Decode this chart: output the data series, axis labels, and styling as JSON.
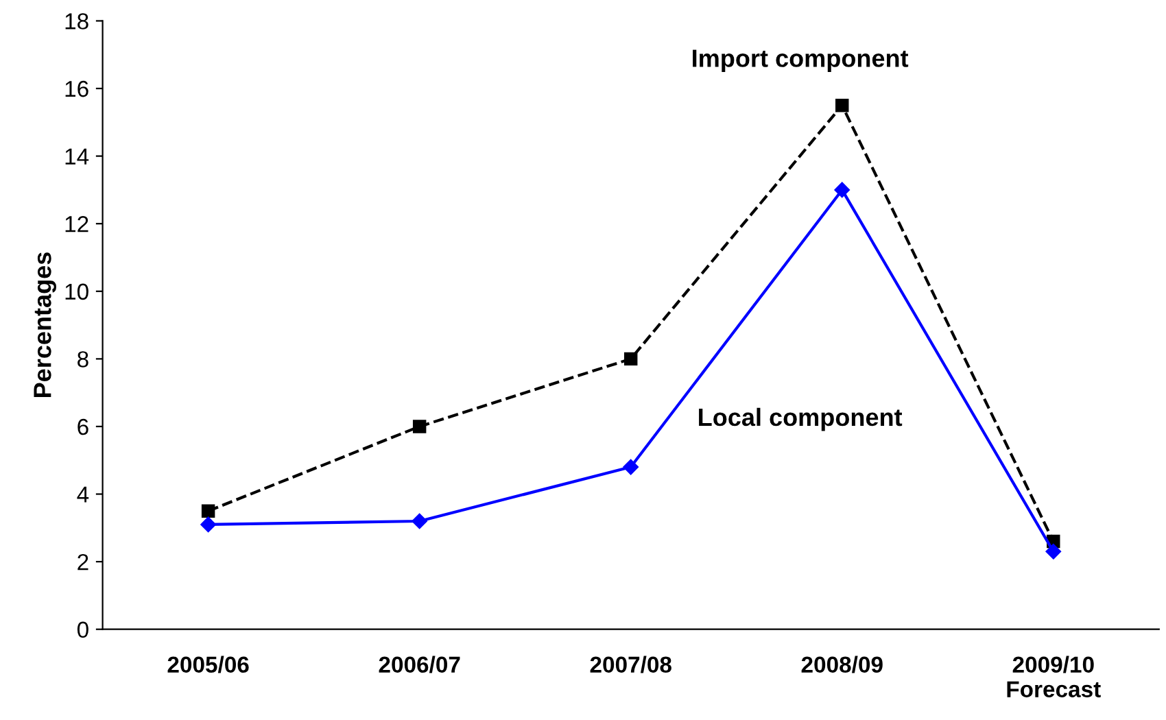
{
  "chart_data": {
    "type": "line",
    "ylabel": "Percentages",
    "categories": [
      "2005/06",
      "2006/07",
      "2007/08",
      "2008/09",
      "2009/10\nForecast"
    ],
    "ylim": [
      0,
      18
    ],
    "yticks": [
      0,
      2,
      4,
      6,
      8,
      10,
      12,
      14,
      16,
      18
    ],
    "grid": false,
    "legend": false,
    "series": [
      {
        "name": "Import component",
        "color": "#000000",
        "marker": "square",
        "line_style": "dashed",
        "values": [
          3.5,
          6,
          8,
          15.5,
          2.6
        ]
      },
      {
        "name": "Local component",
        "color": "#0000ff",
        "marker": "diamond",
        "line_style": "solid",
        "values": [
          3.1,
          3.2,
          4.8,
          13,
          2.3
        ]
      }
    ]
  }
}
